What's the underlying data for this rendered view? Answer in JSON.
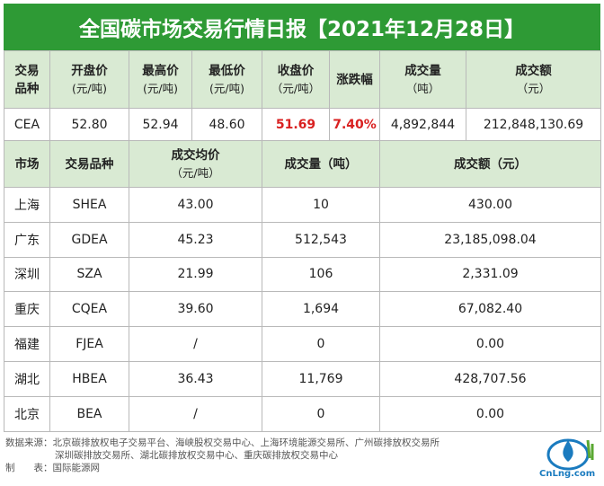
{
  "title": "全国碳市场交易行情日报【2021年12月28日】",
  "table1": {
    "headers": [
      {
        "main": "交易",
        "sub": "品种"
      },
      {
        "main": "开盘价",
        "sub": "(元/吨)"
      },
      {
        "main": "最高价",
        "sub": "(元/吨)"
      },
      {
        "main": "最低价",
        "sub": "(元/吨)"
      },
      {
        "main": "收盘价",
        "sub": "（元/吨）"
      },
      {
        "main": "涨跌幅",
        "sub": ""
      },
      {
        "main": "成交量",
        "sub": "（吨）"
      },
      {
        "main": "成交额",
        "sub": "（元）"
      }
    ],
    "row": [
      "CEA",
      "52.80",
      "52.94",
      "48.60",
      "51.69",
      "7.40%",
      "4,892,844",
      "212,848,130.69"
    ]
  },
  "table2": {
    "headers": {
      "market": "市场",
      "product": "交易品种",
      "avg_price": "成交均价",
      "avg_price_unit": "（元/吨）",
      "volume": "成交量（吨）",
      "amount": "成交额（元）"
    },
    "rows": [
      [
        "上海",
        "SHEA",
        "43.00",
        "10",
        "430.00"
      ],
      [
        "广东",
        "GDEA",
        "45.23",
        "512,543",
        "23,185,098.04"
      ],
      [
        "深圳",
        "SZA",
        "21.99",
        "106",
        "2,331.09"
      ],
      [
        "重庆",
        "CQEA",
        "39.60",
        "1,694",
        "67,082.40"
      ],
      [
        "福建",
        "FJEA",
        "/",
        "0",
        "0.00"
      ],
      [
        "湖北",
        "HBEA",
        "36.43",
        "11,769",
        "428,707.56"
      ],
      [
        "北京",
        "BEA",
        "/",
        "0",
        "0.00"
      ]
    ]
  },
  "footer": {
    "source_line1": "数据来源：北京碳排放权电子交易平台、海峡股权交易中心、上海环境能源交易所、广州碳排放权交易所",
    "source_line2": "深圳碳排放交易所、湖北碳排放权交易中心、重庆碳排放权交易中心",
    "maker": "制　　表：国际能源网"
  },
  "logo": {
    "text": "CnLng.com",
    "icon": "water-drop-logo-icon"
  },
  "colors": {
    "header_green": "#2e9a35",
    "header_light": "#d9ead3",
    "highlight_red": "#d92020"
  }
}
